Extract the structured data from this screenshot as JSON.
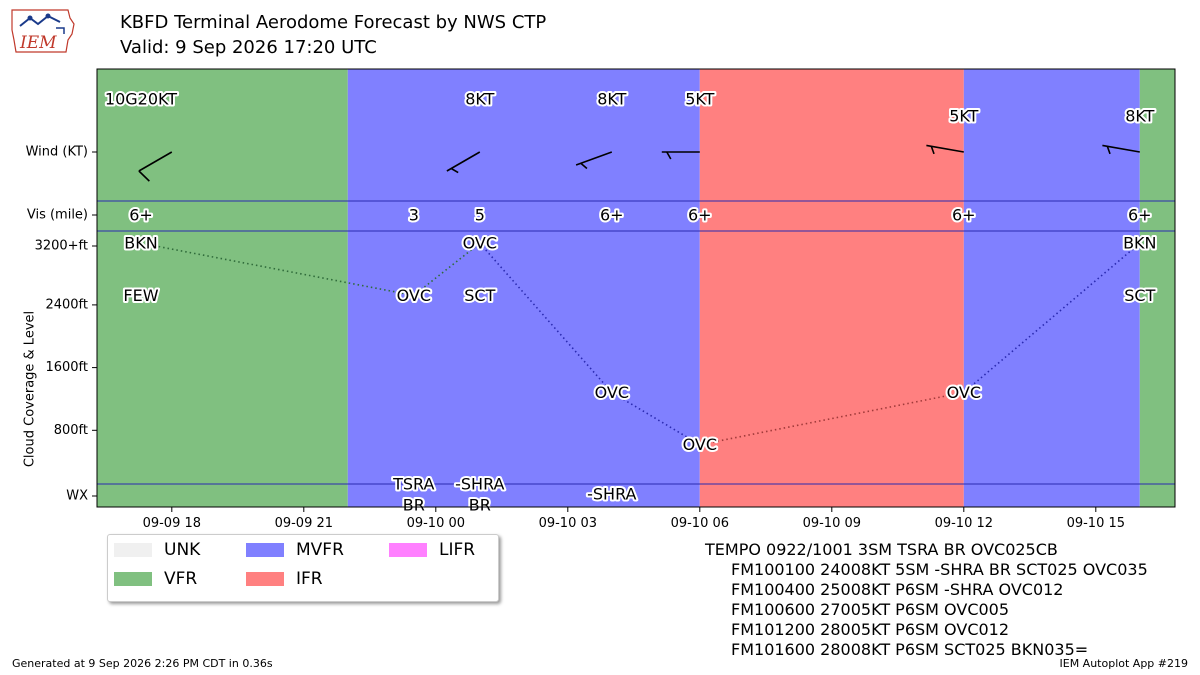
{
  "header": {
    "logo_text": "IEM",
    "title": "KBFD Terminal Aerodome Forecast by NWS CTP",
    "subtitle": "Valid: 9 Sep 2026 17:20 UTC"
  },
  "chart_data": {
    "type": "timeline",
    "x_unit": "hours since 2026-09-09 00 UTC",
    "xlim": [
      16.3,
      40.8
    ],
    "xticks": [
      {
        "x": 18,
        "label": "09-09 18"
      },
      {
        "x": 21,
        "label": "09-09 21"
      },
      {
        "x": 24,
        "label": "09-10 00"
      },
      {
        "x": 27,
        "label": "09-10 03"
      },
      {
        "x": 30,
        "label": "09-10 06"
      },
      {
        "x": 33,
        "label": "09-10 09"
      },
      {
        "x": 36,
        "label": "09-10 12"
      },
      {
        "x": 39,
        "label": "09-10 15"
      }
    ],
    "row_labels": {
      "wind": "Wind (KT)",
      "vis": "Vis (mile)",
      "wx": "WX",
      "cloud_axis": "Cloud Coverage & Level"
    },
    "cloud_yticks": [
      {
        "v": 800,
        "label": "800ft"
      },
      {
        "v": 1600,
        "label": "1600ft"
      },
      {
        "v": 2400,
        "label": "2400ft"
      },
      {
        "v": 3200,
        "label": "3200+ft"
      }
    ],
    "flight_category_bands": [
      {
        "start": 16.3,
        "end": 22.0,
        "category": "VFR"
      },
      {
        "start": 22.0,
        "end": 30.0,
        "category": "MVFR"
      },
      {
        "start": 30.0,
        "end": 36.0,
        "category": "IFR"
      },
      {
        "start": 36.0,
        "end": 40.0,
        "category": "MVFR"
      },
      {
        "start": 40.0,
        "end": 40.8,
        "category": "VFR"
      }
    ],
    "category_colors": {
      "UNK": "#f0f0f0",
      "VFR": "#80c080",
      "MVFR": "#8080ff",
      "IFR": "#ff8080",
      "LIFR": "#ff80ff"
    },
    "wind": [
      {
        "x": 17.3,
        "label": "10G20KT",
        "barb_x": 18.0,
        "dir": 240,
        "spd": 10
      },
      {
        "x": 25.0,
        "label": "8KT",
        "barb_x": 25.0,
        "dir": 240,
        "spd": 8
      },
      {
        "x": 28.0,
        "label": "8KT",
        "barb_x": 28.0,
        "dir": 250,
        "spd": 8
      },
      {
        "x": 30.0,
        "label": "5KT",
        "barb_x": 30.0,
        "dir": 270,
        "spd": 5
      },
      {
        "x": 36.0,
        "label": "5KT",
        "barb_x": 36.0,
        "dir": 280,
        "spd": 5
      },
      {
        "x": 40.0,
        "label": "8KT",
        "barb_x": 40.0,
        "dir": 280,
        "spd": 8
      }
    ],
    "visibility": [
      {
        "x": 17.3,
        "label": "6+"
      },
      {
        "x": 23.5,
        "label": "3"
      },
      {
        "x": 25.0,
        "label": "5"
      },
      {
        "x": 28.0,
        "label": "6+"
      },
      {
        "x": 30.0,
        "label": "6+"
      },
      {
        "x": 36.0,
        "label": "6+"
      },
      {
        "x": 40.0,
        "label": "6+"
      }
    ],
    "cloud_layers": [
      {
        "x": 17.3,
        "level": 3200,
        "cover": "BKN"
      },
      {
        "x": 17.3,
        "level": 2500,
        "cover": "FEW"
      },
      {
        "x": 23.5,
        "level": 2500,
        "cover": "OVC"
      },
      {
        "x": 25.0,
        "level": 3200,
        "cover": "OVC"
      },
      {
        "x": 25.0,
        "level": 2500,
        "cover": "SCT"
      },
      {
        "x": 28.0,
        "level": 1200,
        "cover": "OVC"
      },
      {
        "x": 30.0,
        "level": 500,
        "cover": "OVC"
      },
      {
        "x": 36.0,
        "level": 1200,
        "cover": "OVC"
      },
      {
        "x": 40.0,
        "level": 3200,
        "cover": "BKN"
      },
      {
        "x": 40.0,
        "level": 2500,
        "cover": "SCT"
      }
    ],
    "ceiling_line": [
      {
        "x": 17.3,
        "level": 3200
      },
      {
        "x": 23.5,
        "level": 2500
      },
      {
        "x": 25.0,
        "level": 3200
      },
      {
        "x": 28.0,
        "level": 1200
      },
      {
        "x": 30.0,
        "level": 500
      },
      {
        "x": 36.0,
        "level": 1200
      },
      {
        "x": 40.0,
        "level": 3200
      }
    ],
    "weather": [
      {
        "x": 23.5,
        "lines": [
          "TSRA",
          "BR"
        ]
      },
      {
        "x": 25.0,
        "lines": [
          "-SHRA",
          "BR"
        ]
      },
      {
        "x": 28.0,
        "lines": [
          "-SHRA"
        ]
      }
    ]
  },
  "legend": {
    "items": [
      {
        "label": "UNK",
        "category": "UNK"
      },
      {
        "label": "VFR",
        "category": "VFR"
      },
      {
        "label": "MVFR",
        "category": "MVFR"
      },
      {
        "label": "IFR",
        "category": "IFR"
      },
      {
        "label": "LIFR",
        "category": "LIFR"
      }
    ]
  },
  "taf": {
    "lines": [
      "TEMPO 0922/1001 3SM TSRA BR OVC025CB",
      "FM100100 24008KT 5SM -SHRA BR SCT025 OVC035",
      "FM100400 25008KT P6SM -SHRA OVC012",
      "FM100600 27005KT P6SM OVC005",
      "FM101200 28005KT P6SM OVC012",
      "FM101600 28008KT P6SM SCT025 BKN035="
    ]
  },
  "footer": {
    "left": "Generated at 9 Sep 2026 2:26 PM CDT in 0.36s",
    "right": "IEM Autoplot App #219"
  }
}
